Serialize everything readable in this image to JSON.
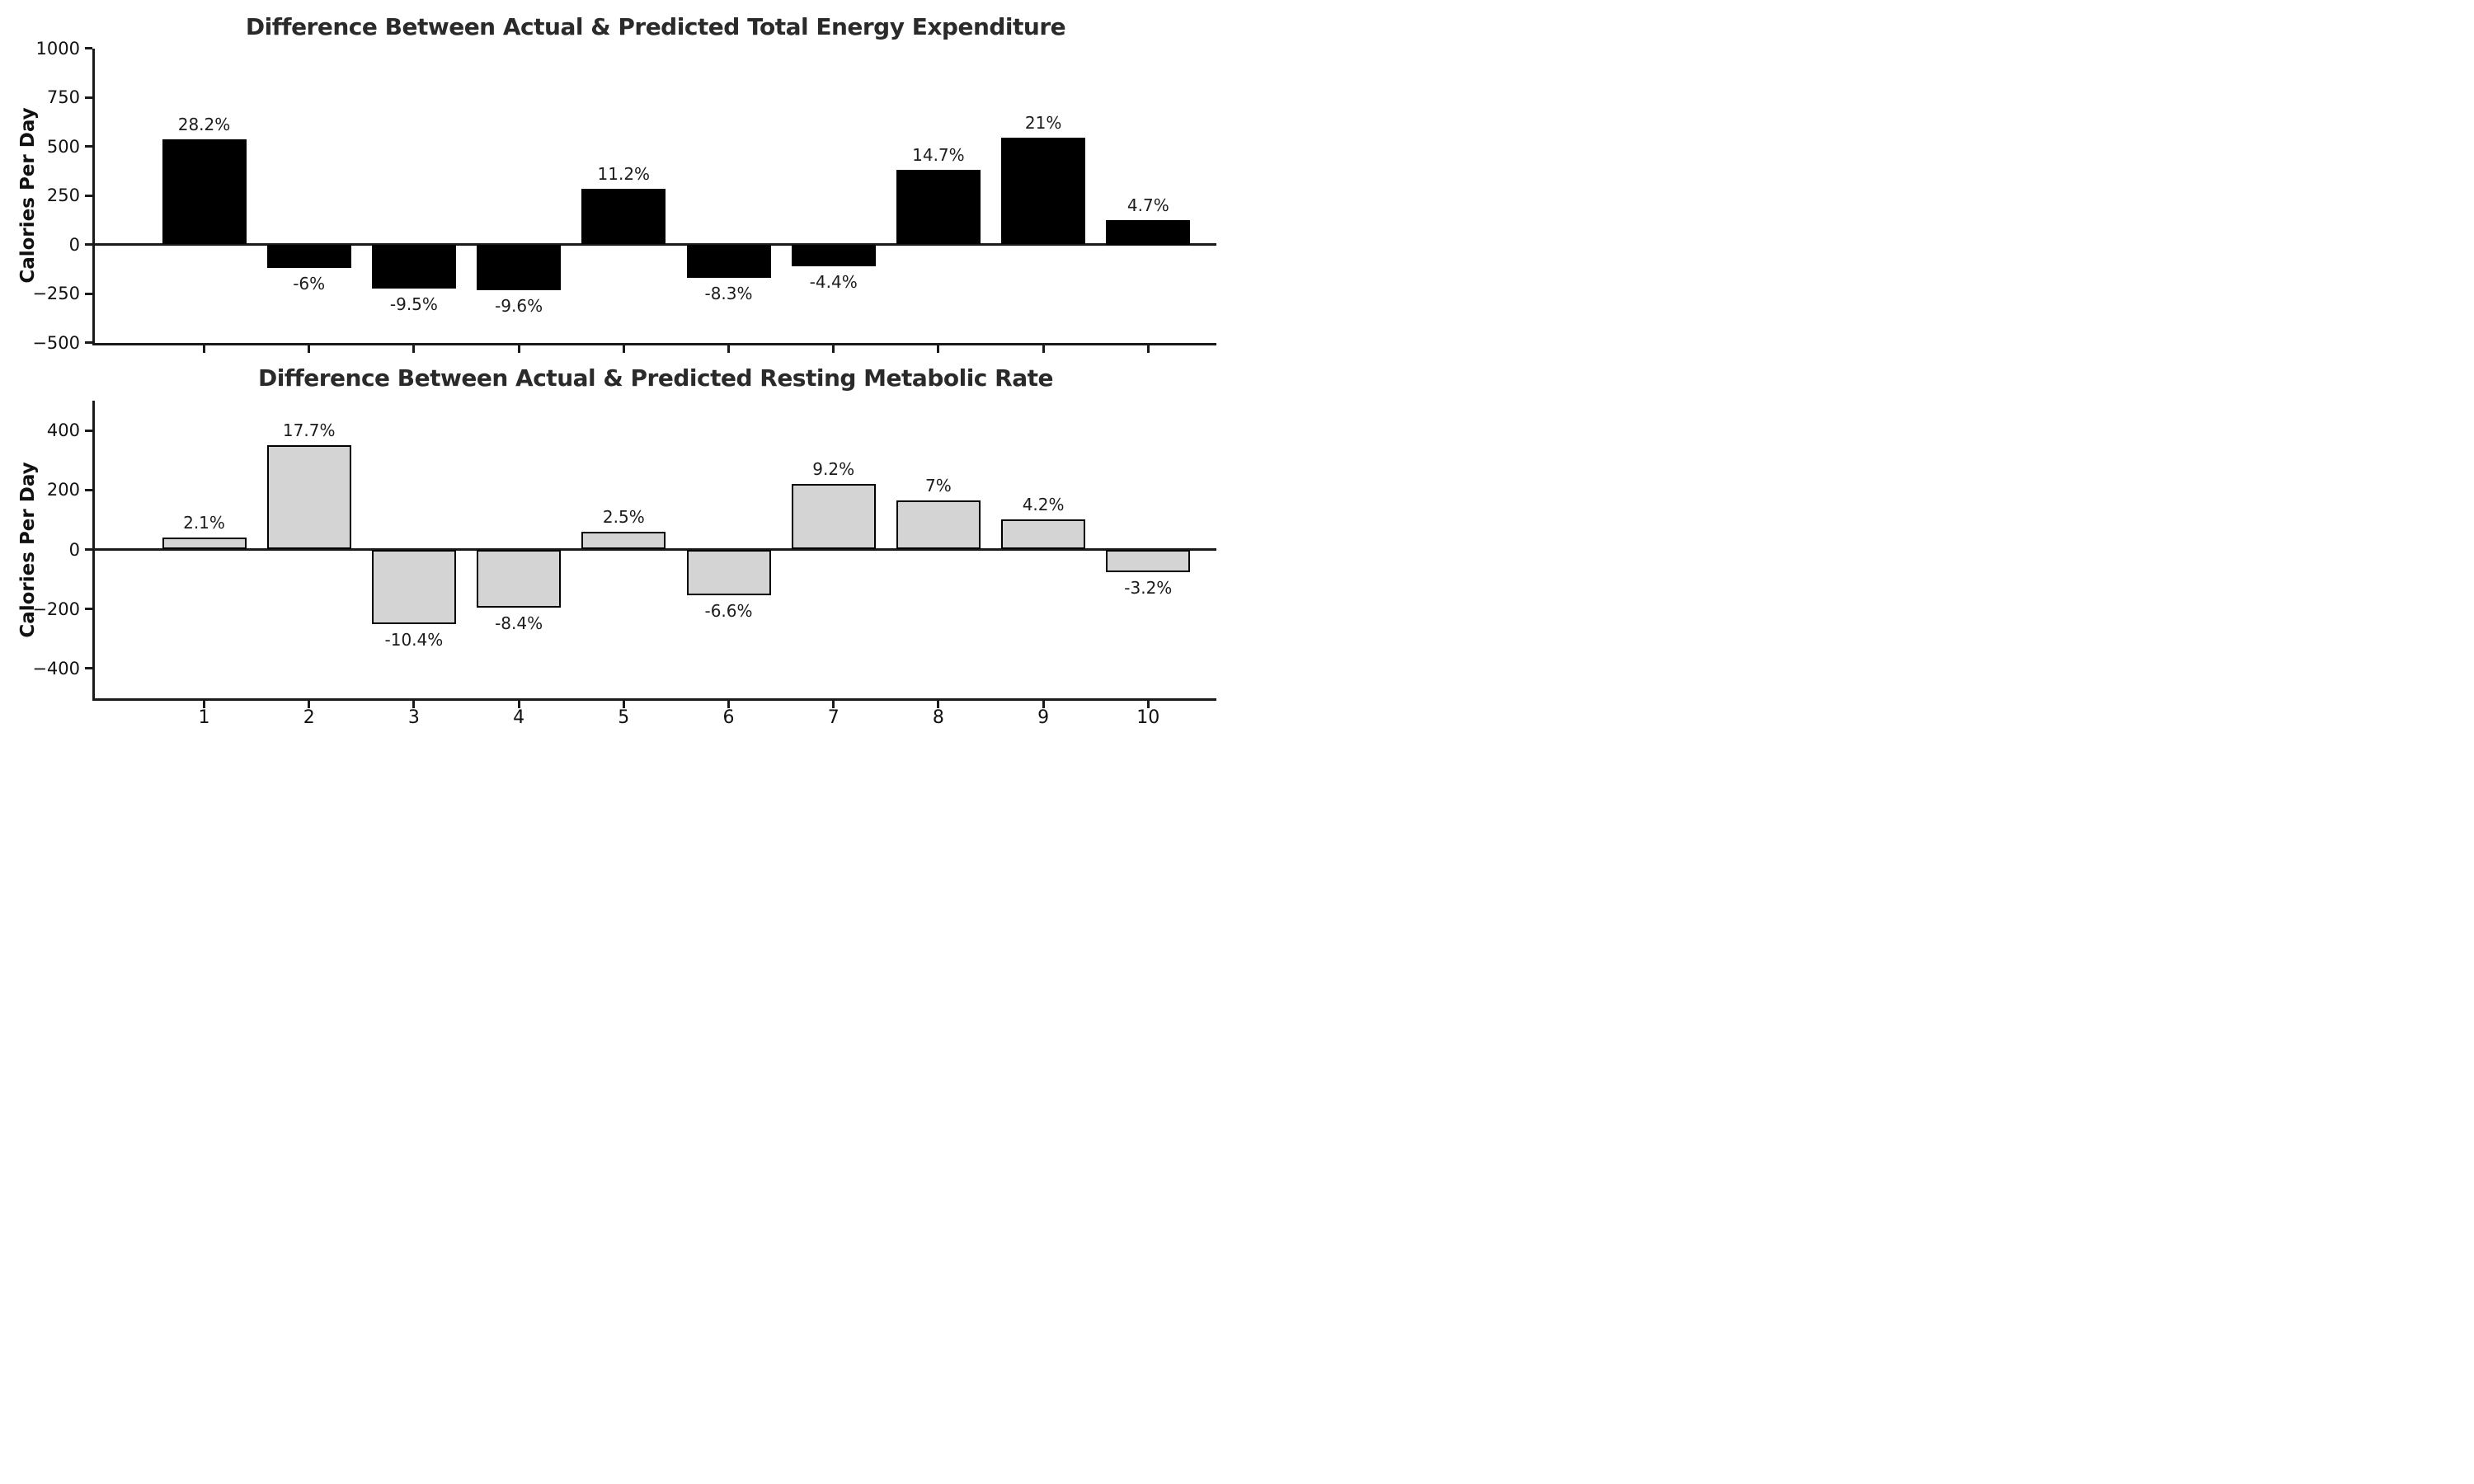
{
  "figure": {
    "background": "#ffffff",
    "axis_color": "#1a1a1a"
  },
  "chart_data": [
    {
      "type": "bar",
      "title": "Difference Between Actual & Predicted Total Energy Expenditure",
      "ylabel": "Calories Per Day",
      "categories": [
        "1",
        "2",
        "3",
        "4",
        "5",
        "6",
        "7",
        "8",
        "9",
        "10"
      ],
      "values": [
        535,
        -120,
        -225,
        -235,
        285,
        -170,
        -110,
        380,
        545,
        125
      ],
      "point_labels": [
        "28.2%",
        "-6%",
        "-9.5%",
        "-9.6%",
        "11.2%",
        "-8.3%",
        "-4.4%",
        "14.7%",
        "21%",
        "4.7%"
      ],
      "ylim": [
        -500,
        1000
      ],
      "yticks": [
        1000,
        750,
        500,
        250,
        0,
        -250,
        -500
      ],
      "ytick_labels": [
        "1000",
        "750",
        "500",
        "250",
        "0",
        "−250",
        "−500"
      ],
      "show_xtick_labels": false,
      "grid": false,
      "legend": "none",
      "bar_color": "#000000",
      "bar_edge_color": "#000000"
    },
    {
      "type": "bar",
      "title": "Difference Between Actual & Predicted Resting Metabolic Rate",
      "ylabel": "Calories Per Day",
      "categories": [
        "1",
        "2",
        "3",
        "4",
        "5",
        "6",
        "7",
        "8",
        "9",
        "10"
      ],
      "values": [
        40,
        350,
        -250,
        -195,
        60,
        -155,
        220,
        165,
        100,
        -75
      ],
      "point_labels": [
        "2.1%",
        "17.7%",
        "-10.4%",
        "-8.4%",
        "2.5%",
        "-6.6%",
        "9.2%",
        "7%",
        "4.2%",
        "-3.2%"
      ],
      "ylim": [
        -500,
        500
      ],
      "yticks": [
        400,
        200,
        0,
        -200,
        -400
      ],
      "ytick_labels": [
        "400",
        "200",
        "0",
        "−200",
        "−400"
      ],
      "show_xtick_labels": true,
      "grid": false,
      "legend": "none",
      "bar_color": "#d4d4d4",
      "bar_edge_color": "#000000"
    }
  ]
}
